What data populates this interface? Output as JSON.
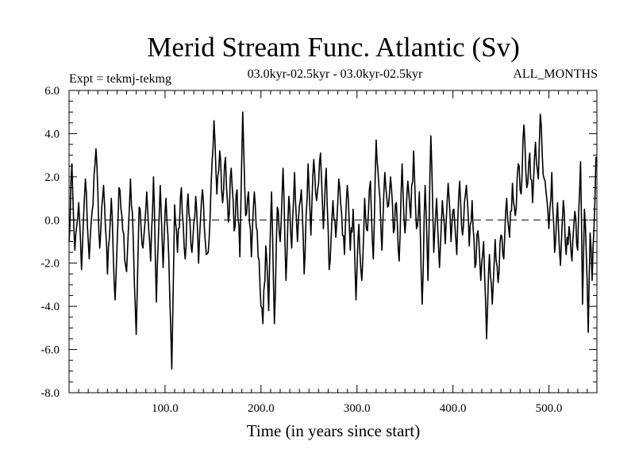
{
  "chart_data": {
    "type": "line",
    "title": "Merid Stream Func. Atlantic (Sv)",
    "subtitle_left": "Expt = tekmj-tekmg",
    "subtitle_center": "03.0kyr-02.5kyr - 03.0kyr-02.5kyr",
    "subtitle_right": "ALL_MONTHS",
    "xlabel": "Time (in years since start)",
    "ylabel": "",
    "xlim": [
      0,
      550
    ],
    "ylim": [
      -8.0,
      6.0
    ],
    "x_ticks": [
      100,
      200,
      300,
      400,
      500
    ],
    "x_tick_labels": [
      "100.0",
      "200.0",
      "300.0",
      "400.0",
      "500.0"
    ],
    "y_ticks": [
      6,
      4,
      2,
      0,
      -2,
      -4,
      -6,
      -8
    ],
    "y_tick_labels": [
      "6.0",
      "4.0",
      "2.0",
      "0.0",
      "-2.0",
      "-4.0",
      "-6.0",
      "-8.0"
    ],
    "zero_line": 0,
    "series": [
      {
        "name": "Merid Stream Func. Atlantic",
        "keypoints": [
          [
            0,
            -1.0
          ],
          [
            3,
            2.6
          ],
          [
            6,
            -1.4
          ],
          [
            10,
            0.8
          ],
          [
            13,
            -2.3
          ],
          [
            17,
            1.9
          ],
          [
            21,
            -1.8
          ],
          [
            24,
            0.4
          ],
          [
            28,
            3.3
          ],
          [
            32,
            -1.3
          ],
          [
            36,
            1.6
          ],
          [
            40,
            -2.5
          ],
          [
            44,
            1.0
          ],
          [
            48,
            -3.7
          ],
          [
            52,
            1.5
          ],
          [
            56,
            -0.5
          ],
          [
            60,
            -2.4
          ],
          [
            64,
            1.9
          ],
          [
            67,
            -1.0
          ],
          [
            70,
            -5.3
          ],
          [
            73,
            0.6
          ],
          [
            77,
            -1.3
          ],
          [
            81,
            1.3
          ],
          [
            85,
            -1.9
          ],
          [
            88,
            2.0
          ],
          [
            91,
            -3.8
          ],
          [
            95,
            1.6
          ],
          [
            98,
            -2.2
          ],
          [
            101,
            1.0
          ],
          [
            104,
            -1.8
          ],
          [
            107,
            -6.9
          ],
          [
            110,
            0.7
          ],
          [
            113,
            -1.5
          ],
          [
            117,
            1.5
          ],
          [
            121,
            -1.8
          ],
          [
            124,
            1.2
          ],
          [
            128,
            -1.5
          ],
          [
            132,
            1.1
          ],
          [
            135,
            -2.0
          ],
          [
            139,
            1.4
          ],
          [
            142,
            -1.0
          ],
          [
            145,
            -1.5
          ],
          [
            148,
            1.6
          ],
          [
            151,
            4.6
          ],
          [
            154,
            1.2
          ],
          [
            157,
            3.2
          ],
          [
            160,
            0.8
          ],
          [
            163,
            2.9
          ],
          [
            166,
            -0.1
          ],
          [
            169,
            2.4
          ],
          [
            172,
            -0.5
          ],
          [
            175,
            1.4
          ],
          [
            178,
            -1.7
          ],
          [
            181,
            5.0
          ],
          [
            184,
            0.2
          ],
          [
            187,
            1.3
          ],
          [
            190,
            -1.7
          ],
          [
            193,
            1.3
          ],
          [
            196,
            -0.5
          ],
          [
            199,
            -3.1
          ],
          [
            202,
            -4.8
          ],
          [
            205,
            -1.2
          ],
          [
            208,
            -4.2
          ],
          [
            211,
            1.3
          ],
          [
            214,
            -4.8
          ],
          [
            217,
            0.6
          ],
          [
            220,
            -1.0
          ],
          [
            223,
            2.4
          ],
          [
            226,
            -2.8
          ],
          [
            229,
            1.1
          ],
          [
            232,
            -1.3
          ],
          [
            235,
            2.2
          ],
          [
            238,
            -1.0
          ],
          [
            242,
            1.4
          ],
          [
            245,
            -2.5
          ],
          [
            249,
            2.6
          ],
          [
            252,
            -0.7
          ],
          [
            255,
            2.8
          ],
          [
            258,
            0.9
          ],
          [
            262,
            3.1
          ],
          [
            265,
            -0.4
          ],
          [
            268,
            2.4
          ],
          [
            271,
            -2.3
          ],
          [
            275,
            0.9
          ],
          [
            278,
            -0.8
          ],
          [
            281,
            1.9
          ],
          [
            284,
            0.3
          ],
          [
            287,
            -1.6
          ],
          [
            290,
            1.6
          ],
          [
            293,
            -1.4
          ],
          [
            296,
            0.5
          ],
          [
            299,
            -3.7
          ],
          [
            302,
            -0.2
          ],
          [
            305,
            -2.8
          ],
          [
            308,
            1.0
          ],
          [
            311,
            -0.5
          ],
          [
            314,
            1.8
          ],
          [
            317,
            -1.8
          ],
          [
            320,
            3.7
          ],
          [
            323,
            1.5
          ],
          [
            326,
            -1.4
          ],
          [
            329,
            2.2
          ],
          [
            332,
            0.6
          ],
          [
            335,
            2.0
          ],
          [
            338,
            -0.6
          ],
          [
            341,
            0.8
          ],
          [
            344,
            -1.9
          ],
          [
            347,
            2.6
          ],
          [
            350,
            -0.6
          ],
          [
            353,
            1.8
          ],
          [
            356,
            0.1
          ],
          [
            359,
            3.2
          ],
          [
            362,
            -0.4
          ],
          [
            365,
            1.3
          ],
          [
            368,
            -3.9
          ],
          [
            371,
            1.6
          ],
          [
            374,
            -2.8
          ],
          [
            377,
            3.9
          ],
          [
            380,
            -1.5
          ],
          [
            383,
            1.0
          ],
          [
            386,
            -2.2
          ],
          [
            389,
            0.9
          ],
          [
            392,
            -1.1
          ],
          [
            395,
            1.7
          ],
          [
            398,
            -1.0
          ],
          [
            401,
            0.5
          ],
          [
            404,
            -1.6
          ],
          [
            407,
            1.8
          ],
          [
            410,
            -0.7
          ],
          [
            414,
            1.6
          ],
          [
            417,
            -1.2
          ],
          [
            420,
            0.9
          ],
          [
            423,
            -2.2
          ],
          [
            426,
            -0.5
          ],
          [
            429,
            -2.8
          ],
          [
            432,
            -1.0
          ],
          [
            435,
            -5.5
          ],
          [
            438,
            -1.6
          ],
          [
            441,
            -3.9
          ],
          [
            444,
            -0.9
          ],
          [
            447,
            -2.9
          ],
          [
            450,
            -0.7
          ],
          [
            453,
            -1.8
          ],
          [
            456,
            1.0
          ],
          [
            459,
            -0.8
          ],
          [
            462,
            1.7
          ],
          [
            465,
            0.2
          ],
          [
            468,
            2.6
          ],
          [
            471,
            1.2
          ],
          [
            474,
            4.4
          ],
          [
            477,
            1.5
          ],
          [
            480,
            3.1
          ],
          [
            483,
            0.8
          ],
          [
            486,
            3.6
          ],
          [
            489,
            1.9
          ],
          [
            491,
            4.9
          ],
          [
            494,
            2.1
          ],
          [
            497,
            1.3
          ],
          [
            500,
            -0.4
          ],
          [
            503,
            2.2
          ],
          [
            506,
            -1.5
          ],
          [
            509,
            0.8
          ],
          [
            512,
            -2.1
          ],
          [
            515,
            0.9
          ],
          [
            518,
            -1.6
          ],
          [
            521,
            -0.3
          ],
          [
            524,
            -1.9
          ],
          [
            527,
            0.4
          ],
          [
            530,
            -1.4
          ],
          [
            533,
            2.7
          ],
          [
            535,
            -3.9
          ],
          [
            537,
            0.5
          ],
          [
            539,
            -1.6
          ],
          [
            541,
            -5.2
          ],
          [
            543,
            -0.6
          ],
          [
            545,
            -2.8
          ],
          [
            547,
            -0.3
          ],
          [
            549,
            2.9
          ],
          [
            550,
            2.7
          ]
        ]
      }
    ]
  }
}
